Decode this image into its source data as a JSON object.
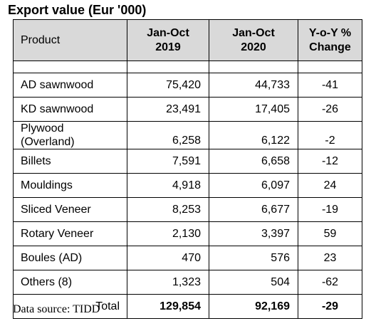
{
  "title": "Export value (Eur '000)",
  "headers": {
    "product": "Product",
    "col2019_line1": "Jan-Oct",
    "col2019_line2": "2019",
    "col2020_line1": "Jan-Oct",
    "col2020_line2": "2020",
    "yoy_line1": "Y-o-Y %",
    "yoy_line2": "Change"
  },
  "rows": [
    {
      "product": "AD sawnwood",
      "v2019": "75,420",
      "v2020": "44,733",
      "yoy": "-41"
    },
    {
      "product": "KD sawnwood",
      "v2019": "23,491",
      "v2020": "17,405",
      "yoy": "-26"
    },
    {
      "product_line1": "Plywood",
      "product_line2": "(Overland)",
      "v2019": "6,258",
      "v2020": "6,122",
      "yoy": "-2"
    },
    {
      "product": "Billets",
      "v2019": "7,591",
      "v2020": "6,658",
      "yoy": "-12"
    },
    {
      "product": "Mouldings",
      "v2019": "4,918",
      "v2020": "6,097",
      "yoy": "24"
    },
    {
      "product": "Sliced Veneer",
      "v2019": "8,253",
      "v2020": "6,677",
      "yoy": "-19"
    },
    {
      "product": "Rotary Veneer",
      "v2019": "2,130",
      "v2020": "3,397",
      "yoy": "59"
    },
    {
      "product": "Boules (AD)",
      "v2019": "470",
      "v2020": "576",
      "yoy": "23"
    },
    {
      "product": "Others (8)",
      "v2019": "1,323",
      "v2020": "504",
      "yoy": "-62"
    }
  ],
  "total": {
    "label": "Total",
    "v2019": "129,854",
    "v2020": "92,169",
    "yoy": "-29"
  },
  "source": "Data source: TIDD"
}
